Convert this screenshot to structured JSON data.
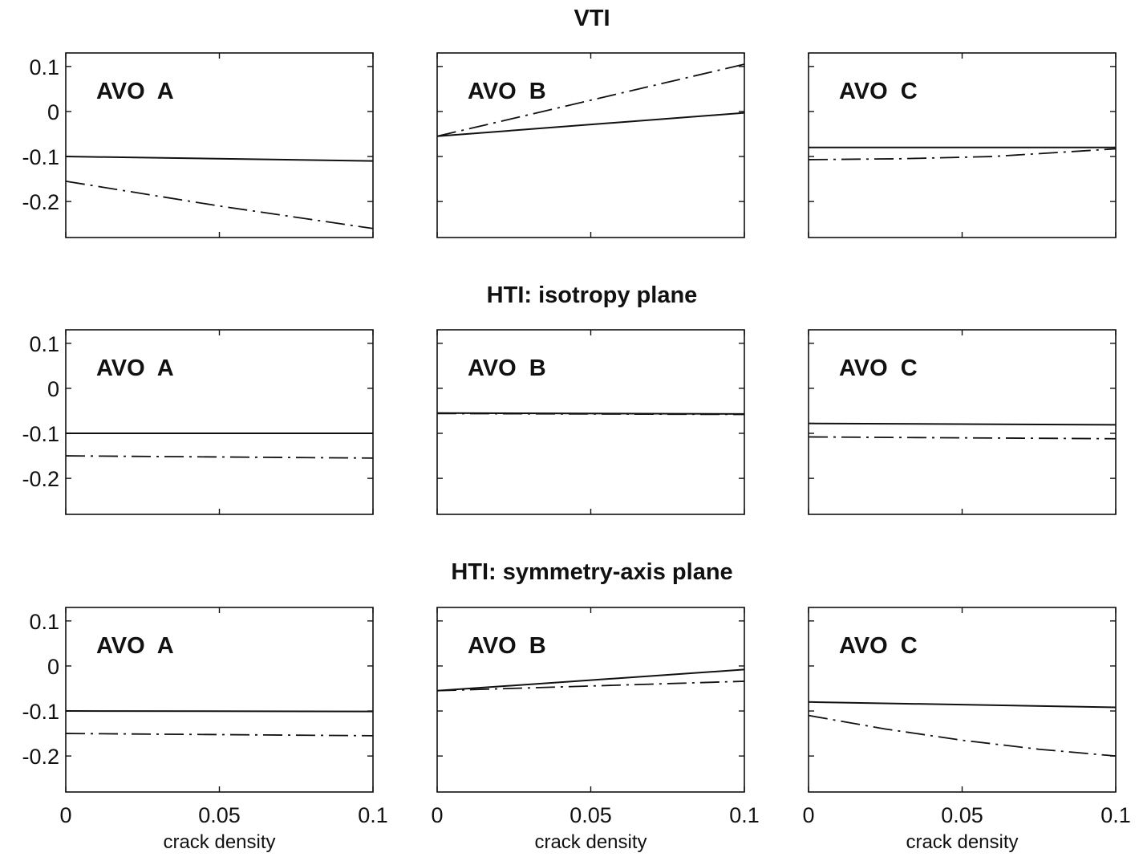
{
  "row_titles": [
    "VTI",
    "HTI: isotropy plane",
    "HTI: symmetry-axis plane"
  ],
  "chart_data": {
    "type": "line",
    "xlabel": "crack density",
    "xlim": [
      0,
      0.1
    ],
    "ylim": [
      -0.28,
      0.13
    ],
    "xticks": [
      0,
      0.05,
      0.1
    ],
    "xtick_labels": [
      "0",
      "0.05",
      "0.1"
    ],
    "yticks": [
      0.1,
      0,
      -0.1,
      -0.2
    ],
    "ytick_labels": [
      "0.1",
      "0",
      "-0.1",
      "-0.2"
    ],
    "grid": false,
    "legend": "none",
    "panels": [
      {
        "row": 0,
        "col": 0,
        "label": "AVO  A",
        "series": [
          {
            "style": "solid",
            "x": [
              0,
              0.1
            ],
            "y": [
              -0.1,
              -0.11
            ]
          },
          {
            "style": "dashdot",
            "x": [
              0,
              0.05,
              0.1
            ],
            "y": [
              -0.155,
              -0.21,
              -0.26
            ]
          }
        ]
      },
      {
        "row": 0,
        "col": 1,
        "label": "AVO  B",
        "series": [
          {
            "style": "solid",
            "x": [
              0,
              0.1
            ],
            "y": [
              -0.055,
              -0.003
            ]
          },
          {
            "style": "dashdot",
            "x": [
              0,
              0.1
            ],
            "y": [
              -0.055,
              0.105
            ]
          }
        ]
      },
      {
        "row": 0,
        "col": 2,
        "label": "AVO  C",
        "series": [
          {
            "style": "solid",
            "x": [
              0,
              0.1
            ],
            "y": [
              -0.08,
              -0.08
            ]
          },
          {
            "style": "dashdot",
            "x": [
              0,
              0.03,
              0.06,
              0.1
            ],
            "y": [
              -0.107,
              -0.105,
              -0.1,
              -0.083
            ]
          }
        ]
      },
      {
        "row": 1,
        "col": 0,
        "label": "AVO  A",
        "series": [
          {
            "style": "solid",
            "x": [
              0,
              0.1
            ],
            "y": [
              -0.1,
              -0.1
            ]
          },
          {
            "style": "dashdot",
            "x": [
              0,
              0.1
            ],
            "y": [
              -0.15,
              -0.155
            ]
          }
        ]
      },
      {
        "row": 1,
        "col": 1,
        "label": "AVO  B",
        "series": [
          {
            "style": "solid",
            "x": [
              0,
              0.1
            ],
            "y": [
              -0.055,
              -0.057
            ]
          },
          {
            "style": "dashdot",
            "x": [
              0,
              0.1
            ],
            "y": [
              -0.056,
              -0.058
            ]
          }
        ]
      },
      {
        "row": 1,
        "col": 2,
        "label": "AVO  C",
        "series": [
          {
            "style": "solid",
            "x": [
              0,
              0.1
            ],
            "y": [
              -0.078,
              -0.081
            ]
          },
          {
            "style": "dashdot",
            "x": [
              0,
              0.1
            ],
            "y": [
              -0.108,
              -0.112
            ]
          }
        ]
      },
      {
        "row": 2,
        "col": 0,
        "label": "AVO  A",
        "series": [
          {
            "style": "solid",
            "x": [
              0,
              0.1
            ],
            "y": [
              -0.1,
              -0.101
            ]
          },
          {
            "style": "dashdot",
            "x": [
              0,
              0.1
            ],
            "y": [
              -0.15,
              -0.155
            ]
          }
        ]
      },
      {
        "row": 2,
        "col": 1,
        "label": "AVO  B",
        "series": [
          {
            "style": "solid",
            "x": [
              0,
              0.1
            ],
            "y": [
              -0.055,
              -0.008
            ]
          },
          {
            "style": "dashdot",
            "x": [
              0,
              0.1
            ],
            "y": [
              -0.055,
              -0.034
            ]
          }
        ]
      },
      {
        "row": 2,
        "col": 2,
        "label": "AVO  C",
        "series": [
          {
            "style": "solid",
            "x": [
              0,
              0.1
            ],
            "y": [
              -0.08,
              -0.092
            ]
          },
          {
            "style": "dashdot",
            "x": [
              0,
              0.025,
              0.05,
              0.075,
              0.1
            ],
            "y": [
              -0.11,
              -0.14,
              -0.165,
              -0.185,
              -0.2
            ]
          }
        ]
      }
    ]
  }
}
